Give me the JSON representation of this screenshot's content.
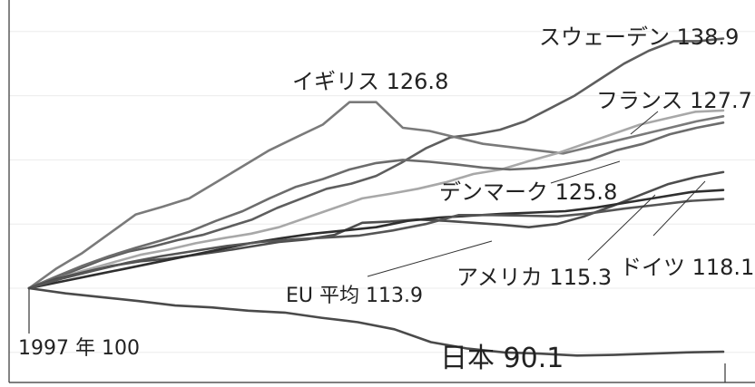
{
  "chart_data": {
    "type": "line",
    "title": "",
    "xlabel": "",
    "ylabel": "",
    "x_start_label": "1997 年 100",
    "ylim": [
      87,
      146
    ],
    "grid": true,
    "legend": "inline labels",
    "series": [
      {
        "name": "スウェーデン",
        "label": "スウェーデン 138.9",
        "color": "#5e5e5e",
        "values": [
          100,
          101.5,
          103,
          104.5,
          105.7,
          106.5,
          107.5,
          108.3,
          109.5,
          110.7,
          112.5,
          114,
          115.5,
          116.3,
          117.5,
          119.5,
          121.8,
          123.5,
          124,
          124.7,
          126,
          128,
          130,
          132.5,
          135,
          137,
          138.5,
          138.5,
          138.9
        ]
      },
      {
        "name": "イギリス",
        "label": "イギリス 126.8",
        "color": "#7a7a7a",
        "values": [
          100,
          103,
          105.5,
          108.5,
          111.5,
          112.7,
          114,
          116.5,
          119,
          121.5,
          123.5,
          125.5,
          129,
          129,
          125,
          124.5,
          123.5,
          122.5,
          122,
          121.5,
          121,
          122,
          123,
          124,
          125,
          126,
          126.8
        ]
      },
      {
        "name": "フランス",
        "label": "フランス 127.7",
        "color": "#a8a8a8",
        "values": [
          100,
          101.5,
          102.8,
          104,
          105.2,
          106,
          107,
          107.8,
          108.5,
          109.5,
          111,
          112.5,
          114,
          114.7,
          115.5,
          116.5,
          117.8,
          118.5,
          119.8,
          121,
          122.5,
          124,
          125.5,
          126.5,
          127.5,
          127.7
        ]
      },
      {
        "name": "デンマーク",
        "label": "デンマーク 125.8",
        "color": "#6c6c6c",
        "values": [
          100,
          101.8,
          103.5,
          105,
          106.3,
          107.5,
          108.8,
          110.5,
          112,
          114,
          115.8,
          117,
          118.5,
          119.5,
          120,
          119.7,
          119.3,
          118.8,
          118.5,
          118.7,
          119.3,
          120,
          121.5,
          122.5,
          124,
          125,
          125.8
        ]
      },
      {
        "name": "ドイツ",
        "label": "ドイツ 118.1",
        "color": "#4d4d4d",
        "values": [
          100,
          101.5,
          102.5,
          103.5,
          104.2,
          104.6,
          105.2,
          105.8,
          106.5,
          107.2,
          107.6,
          108.3,
          110.2,
          110.4,
          110.7,
          110.5,
          110.2,
          109.9,
          109.5,
          110,
          111.2,
          112.8,
          114.5,
          116.2,
          117.3,
          118.1
        ]
      },
      {
        "name": "アメリカ",
        "label": "アメリカ 115.3",
        "color": "#2f2f2f",
        "values": [
          100,
          101,
          102,
          103,
          104,
          105,
          106,
          107,
          107.8,
          108.5,
          109,
          109.5,
          110.5,
          111,
          111.3,
          111.6,
          111.8,
          112,
          112.6,
          113.4,
          114.2,
          115,
          115.3
        ]
      },
      {
        "name": "EU 平均",
        "label": "EU 平均 113.9",
        "color": "#555555",
        "values": [
          100,
          101.5,
          102.8,
          104,
          105,
          105.8,
          106.6,
          107.2,
          107.6,
          107.9,
          108.2,
          109,
          110,
          111.4,
          111.4,
          111.3,
          111.2,
          111.7,
          112.4,
          113,
          113.6,
          113.9
        ]
      },
      {
        "name": "日本",
        "label": "日本 90.1",
        "color": "#4a4a4a",
        "values": [
          100,
          99.2,
          98.6,
          98,
          97.3,
          97,
          96.5,
          96.2,
          95.4,
          94.7,
          93.6,
          91.6,
          90.6,
          90,
          89.8,
          89.5,
          89.6,
          89.8,
          90,
          90.1
        ]
      }
    ]
  }
}
